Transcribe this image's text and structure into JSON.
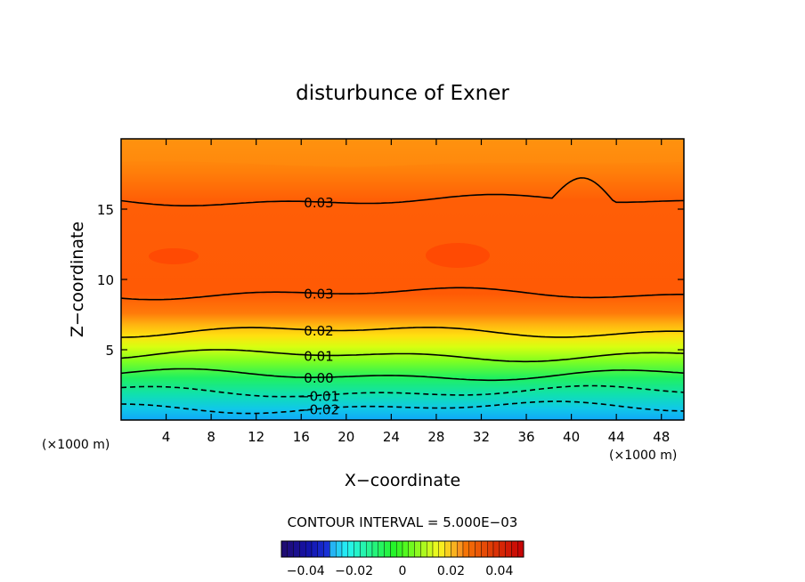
{
  "chart_data": {
    "type": "contour",
    "title": "disturbunce of Exner",
    "xlabel": "X−coordinate",
    "ylabel": "Z−coordinate",
    "x_unit": "(×1000 m)",
    "x_unit_right": "(×1000 m)",
    "xlim": [
      0,
      50
    ],
    "ylim": [
      0,
      20
    ],
    "x_ticks": [
      4,
      8,
      12,
      16,
      20,
      24,
      28,
      32,
      36,
      40,
      44,
      48
    ],
    "y_ticks": [
      5,
      10,
      15
    ],
    "contour_interval_text": "CONTOUR INTERVAL = 5.000E−03",
    "contour_levels": [
      {
        "level": 0.03,
        "label": "0.03",
        "z_mean": 15.6
      },
      {
        "level": 0.03,
        "label": "0.03",
        "z_mean": 9.0
      },
      {
        "level": 0.02,
        "label": "0.02",
        "z_mean": 6.3
      },
      {
        "level": 0.01,
        "label": "0.01",
        "z_mean": 4.6
      },
      {
        "level": 0.0,
        "label": "0.00",
        "z_mean": 3.2
      },
      {
        "level": -0.01,
        "label": "−0.01",
        "z_mean": 2.0
      },
      {
        "level": -0.02,
        "label": "−0.02",
        "z_mean": 0.9
      }
    ],
    "colorbar": {
      "min": -0.05,
      "max": 0.05,
      "tick_labels": [
        "−0.04",
        "−0.02",
        "0",
        "0.02",
        "0.04"
      ],
      "tick_values": [
        -0.04,
        -0.02,
        0,
        0.02,
        0.04
      ]
    }
  }
}
